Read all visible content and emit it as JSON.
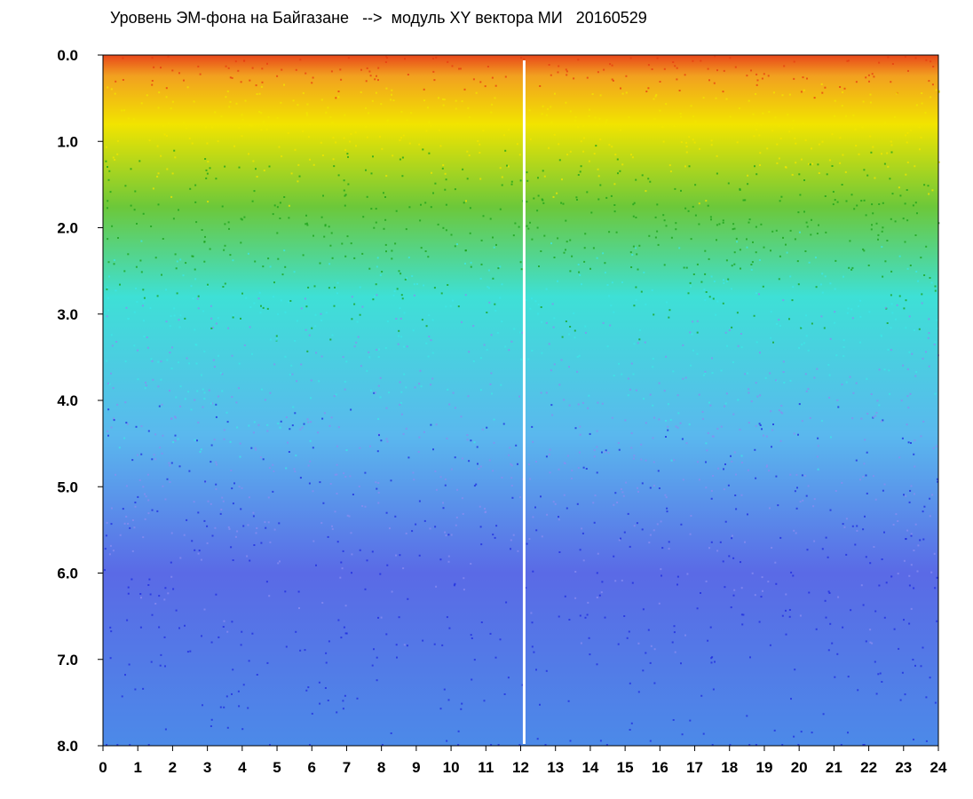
{
  "chart_data": {
    "type": "heatmap",
    "title": "Уровень ЭМ-фона на Байгазане   -->  модуль XY вектора МИ   20160529",
    "xlabel": "",
    "ylabel": "",
    "x_range": [
      0,
      24
    ],
    "y_range": [
      0.0,
      8.0
    ],
    "y_inverted": true,
    "x_ticks": [
      "0",
      "1",
      "2",
      "3",
      "4",
      "5",
      "6",
      "7",
      "8",
      "9",
      "10",
      "11",
      "12",
      "13",
      "14",
      "15",
      "16",
      "17",
      "18",
      "19",
      "20",
      "21",
      "22",
      "23",
      "24"
    ],
    "y_ticks": [
      "0.0",
      "1.0",
      "2.0",
      "3.0",
      "4.0",
      "5.0",
      "6.0",
      "7.0",
      "8.0"
    ],
    "grid": false,
    "legend": "none",
    "colors": {
      "low": "#1e2be0",
      "low_mid": "#8a8cf0",
      "mid": "#3ee6e6",
      "mid_high": "#1aa01a",
      "high": "#f2e600",
      "top": "#e63c10"
    },
    "gap_hours": [
      12.1
    ]
  }
}
